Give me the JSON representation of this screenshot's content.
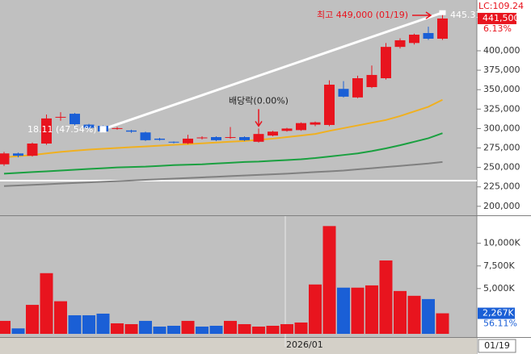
{
  "chart_data": [
    {
      "type": "candlestick",
      "categories": [
        null,
        null,
        null,
        null,
        null,
        null,
        null,
        null,
        null,
        null,
        null,
        null,
        null,
        null,
        null,
        null,
        null,
        null,
        null,
        null,
        "2026/01",
        null,
        null,
        null,
        null,
        null,
        null,
        null,
        null,
        null,
        null,
        "01/19"
      ],
      "open": [
        254000,
        268000,
        265000,
        280700,
        314000,
        319000,
        305000,
        303500,
        300000,
        297500,
        295000,
        287000,
        283000,
        281000,
        287500,
        289000,
        288000,
        289000,
        283000,
        291000,
        297000,
        298000,
        305000,
        304600,
        351000,
        340000,
        353300,
        364700,
        405000,
        410000,
        422800,
        415500
      ],
      "high": [
        270000,
        269000,
        282000,
        318000,
        321000,
        320000,
        306000,
        304000,
        302000,
        298500,
        296000,
        288000,
        283500,
        292000,
        290000,
        290000,
        302000,
        290000,
        300000,
        297000,
        301000,
        308000,
        309000,
        362000,
        361000,
        368000,
        381000,
        410000,
        416000,
        422000,
        431000,
        449000
      ],
      "low": [
        252000,
        263000,
        264000,
        279000,
        310000,
        304000,
        299000,
        295000,
        298500,
        294500,
        284000,
        284500,
        281000,
        280000,
        286000,
        284000,
        287000,
        284000,
        282000,
        290000,
        296000,
        297000,
        303000,
        303000,
        340000,
        339000,
        352000,
        363000,
        403000,
        408000,
        414000,
        414000
      ],
      "close": [
        268000,
        265000,
        280700,
        313000,
        315000,
        305600,
        301000,
        296300,
        300500,
        296000,
        285000,
        285500,
        282000,
        287000,
        288500,
        285000,
        289000,
        285000,
        293000,
        296000,
        300000,
        307000,
        308000,
        356400,
        341000,
        364700,
        368900,
        405000,
        413500,
        420700,
        415500,
        441500
      ],
      "up_color": "#e8141e",
      "down_color": "#1a5fd6",
      "series": [
        {
          "color": "#f0b020",
          "values": [
            263000,
            264500,
            266000,
            268000,
            270000,
            271500,
            273000,
            274000,
            275000,
            276000,
            277000,
            278000,
            279000,
            280000,
            281000,
            282000,
            283000,
            284000,
            285500,
            287000,
            289000,
            291000,
            293000,
            297000,
            300500,
            304000,
            307500,
            311000,
            316000,
            322000,
            328000,
            337000
          ]
        },
        {
          "color": "#1aa040",
          "values": [
            242000,
            243000,
            244000,
            245000,
            246000,
            247000,
            248000,
            249000,
            250000,
            250500,
            251000,
            252000,
            253000,
            253500,
            254000,
            255000,
            256000,
            257000,
            257500,
            258500,
            259500,
            260500,
            262000,
            264000,
            266000,
            268000,
            271000,
            274500,
            278500,
            283000,
            287500,
            294000
          ]
        },
        {
          "color": "#808080",
          "values": [
            226000,
            226800,
            227600,
            228400,
            229200,
            230000,
            230800,
            231600,
            232400,
            233200,
            234000,
            234800,
            235600,
            236400,
            237200,
            238000,
            238800,
            239600,
            240400,
            241200,
            242000,
            243000,
            244000,
            245000,
            246000,
            247500,
            249000,
            250500,
            252000,
            253500,
            255000,
            257000
          ]
        }
      ],
      "ylim": [
        190500,
        465300
      ],
      "yticks": [
        {
          "value": 200000,
          "label": "200,000"
        },
        {
          "value": 225000,
          "label": "225,000"
        },
        {
          "value": 250000,
          "label": "250,000"
        },
        {
          "value": 275000,
          "label": "275,000"
        },
        {
          "value": 300000,
          "label": "300,000"
        },
        {
          "value": 325000,
          "label": "325,000"
        },
        {
          "value": 350000,
          "label": "350,000"
        },
        {
          "value": 375000,
          "label": "375,000"
        },
        {
          "value": 400000,
          "label": "400,000"
        }
      ],
      "hline": 233000,
      "high_annotation": "최고 449,000 (01/19)",
      "low_annotation": "18.11 (47.54%)",
      "event_annotation": "배당락(0.00%)",
      "event_index": 18,
      "lc_label": "LC:109.24",
      "cursor_label": "445.31",
      "last_price": {
        "value": 441500,
        "label": "441,500"
      },
      "change_label": "6.13%"
    },
    {
      "type": "bar",
      "values": [
        1430,
        600,
        3200,
        6700,
        3600,
        2050,
        2050,
        2230,
        1160,
        1070,
        1430,
        800,
        890,
        1430,
        800,
        890,
        1430,
        1070,
        800,
        890,
        1070,
        1250,
        5450,
        11900,
        5100,
        5100,
        5350,
        8100,
        4730,
        4200,
        3840,
        2267
      ],
      "colors": [
        "#e8141e",
        "#1a5fd6",
        "#e8141e",
        "#e8141e",
        "#e8141e",
        "#1a5fd6",
        "#1a5fd6",
        "#1a5fd6",
        "#e8141e",
        "#e8141e",
        "#1a5fd6",
        "#1a5fd6",
        "#1a5fd6",
        "#e8141e",
        "#1a5fd6",
        "#1a5fd6",
        "#e8141e",
        "#e8141e",
        "#e8141e",
        "#e8141e",
        "#e8141e",
        "#e8141e",
        "#e8141e",
        "#e8141e",
        "#1a5fd6",
        "#e8141e",
        "#e8141e",
        "#e8141e",
        "#e8141e",
        "#e8141e",
        "#1a5fd6",
        "#e8141e"
      ],
      "ylim": [
        0,
        13000
      ],
      "yticks": [
        {
          "value": 5000,
          "label": "5,000K"
        },
        {
          "value": 7500,
          "label": "7,500K"
        },
        {
          "value": 10000,
          "label": "10,000K"
        }
      ],
      "last_volume": {
        "value": 2267,
        "label": "2,267K"
      },
      "ratio_label": "56.11%"
    }
  ]
}
